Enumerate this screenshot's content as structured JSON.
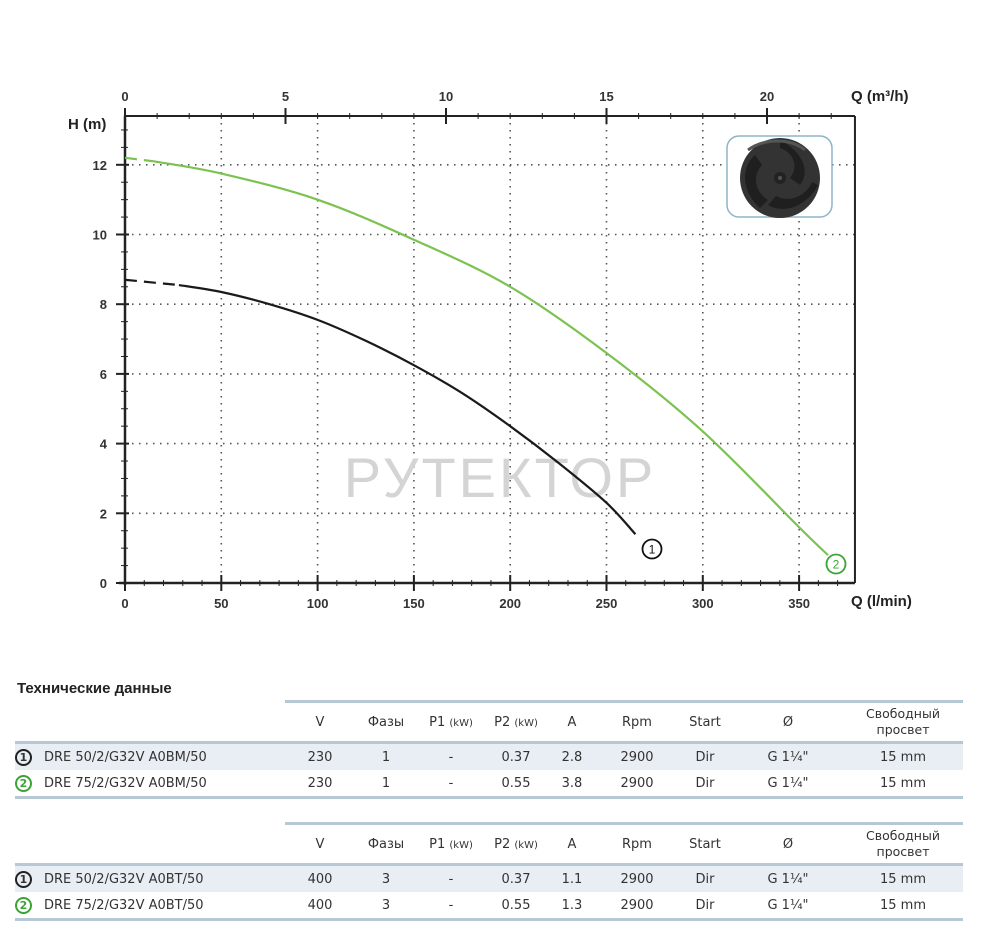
{
  "chart_data": {
    "type": "line",
    "title": "",
    "xlabel": "Q (l/min)",
    "x2label": "Q (m³/h)",
    "ylabel": "H (m)",
    "xlim": [
      0,
      379
    ],
    "ylim": [
      0,
      13.4
    ],
    "x_ticks": [
      0,
      50,
      100,
      150,
      200,
      250,
      300,
      350
    ],
    "x2_ticks": [
      0,
      5,
      10,
      15,
      20
    ],
    "y_ticks": [
      0,
      2,
      4,
      6,
      8,
      10,
      12
    ],
    "grid": true,
    "series": [
      {
        "name": "1",
        "color": "#1a1a1a",
        "dashed_until_x": 28,
        "x": [
          0,
          28,
          50,
          75,
          100,
          125,
          150,
          175,
          200,
          225,
          250,
          265
        ],
        "y": [
          8.7,
          8.55,
          8.35,
          8.0,
          7.55,
          6.95,
          6.25,
          5.45,
          4.5,
          3.45,
          2.3,
          1.4
        ]
      },
      {
        "name": "2",
        "color": "#7cc250",
        "dashed_until_x": 15,
        "x": [
          0,
          15,
          50,
          100,
          150,
          200,
          250,
          300,
          350,
          365
        ],
        "y": [
          12.2,
          12.1,
          11.75,
          11.0,
          9.85,
          8.5,
          6.6,
          4.35,
          1.6,
          0.8
        ]
      }
    ],
    "annotations": [
      "1",
      "2"
    ],
    "watermark": "РУТЕКТОР"
  },
  "section_title": "Технические данные",
  "table_headers": {
    "v": "V",
    "phases": "Фазы",
    "p1": "P1",
    "p1_unit": "(kW)",
    "p2": "P2",
    "p2_unit": "(kW)",
    "a": "A",
    "rpm": "Rpm",
    "start": "Start",
    "dia": "Ø",
    "clearance_1": "Свободный",
    "clearance_2": "просвет"
  },
  "tables": [
    {
      "rows": [
        {
          "badge": "1",
          "model": "DRE 50/2/G32V A0BM/50",
          "v": "230",
          "phases": "1",
          "p1": "-",
          "p2": "0.37",
          "a": "2.8",
          "rpm": "2900",
          "start": "Dir",
          "dia": "G 1¼\"",
          "clearance": "15 mm"
        },
        {
          "badge": "2",
          "model": "DRE 75/2/G32V A0BM/50",
          "v": "230",
          "phases": "1",
          "p1": "-",
          "p2": "0.55",
          "a": "3.8",
          "rpm": "2900",
          "start": "Dir",
          "dia": "G 1¼\"",
          "clearance": "15 mm"
        }
      ]
    },
    {
      "rows": [
        {
          "badge": "1",
          "model": "DRE 50/2/G32V A0BT/50",
          "v": "400",
          "phases": "3",
          "p1": "-",
          "p2": "0.37",
          "a": "1.1",
          "rpm": "2900",
          "start": "Dir",
          "dia": "G 1¼\"",
          "clearance": "15 mm"
        },
        {
          "badge": "2",
          "model": "DRE 75/2/G32V A0BT/50",
          "v": "400",
          "phases": "3",
          "p1": "-",
          "p2": "0.55",
          "a": "1.3",
          "rpm": "2900",
          "start": "Dir",
          "dia": "G 1¼\"",
          "clearance": "15 mm"
        }
      ]
    }
  ]
}
